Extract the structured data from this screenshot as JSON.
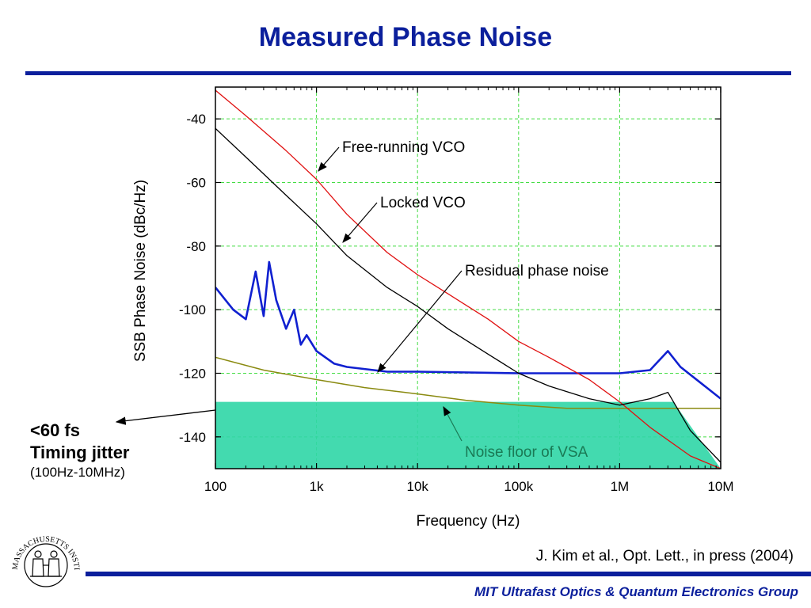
{
  "slide": {
    "title": "Measured Phase Noise",
    "jitter_line1": "<60 fs",
    "jitter_line2": "Timing jitter",
    "jitter_range": "(100Hz-10MHz)",
    "citation": "J. Kim et al., Opt. Lett., in press (2004)",
    "footer": "MIT Ultrafast Optics & Quantum Electronics Group",
    "logo_text": "MASSACHUSETTS INSTITUTE OF TECHNOLOGY"
  },
  "colors": {
    "title": "#0b1f9c",
    "free_running": "#e01010",
    "locked": "#000000",
    "residual": "#1020d0",
    "vsa_floor": "#8a8a10",
    "jitter_area": "#2fd6a6",
    "grid": "#44dd44"
  },
  "chart_data": {
    "type": "line",
    "xscale": "log",
    "xlabel": "Frequency (Hz)",
    "ylabel": "SSB Phase Noise (dBc/Hz)",
    "xlim": [
      100,
      10000000
    ],
    "ylim": [
      -150,
      -30
    ],
    "x_ticks": [
      100,
      1000,
      10000,
      100000,
      1000000,
      10000000
    ],
    "x_tick_labels": [
      "100",
      "1k",
      "10k",
      "100k",
      "1M",
      "10M"
    ],
    "y_ticks": [
      -140,
      -120,
      -100,
      -80,
      -60,
      -40
    ],
    "y_tick_labels": [
      "-140",
      "-120",
      "-100",
      "-80",
      "-60",
      "-40"
    ],
    "grid": true,
    "series": [
      {
        "name": "Free-running VCO",
        "x": [
          100,
          200,
          500,
          1000,
          2000,
          5000,
          10000,
          20000,
          50000,
          100000,
          200000,
          500000,
          1000000,
          2000000,
          5000000,
          10000000
        ],
        "y": [
          -31,
          -39,
          -50,
          -59,
          -70,
          -82,
          -89,
          -95,
          -103,
          -110,
          -115,
          -122,
          -129,
          -137,
          -146,
          -150
        ]
      },
      {
        "name": "Locked VCO",
        "x": [
          100,
          200,
          500,
          1000,
          2000,
          5000,
          10000,
          20000,
          50000,
          100000,
          200000,
          500000,
          1000000,
          2000000,
          3000000,
          5000000,
          10000000
        ],
        "y": [
          -43,
          -52,
          -64,
          -73,
          -83,
          -93,
          -99,
          -106,
          -114,
          -120,
          -124,
          -128,
          -130,
          -128,
          -126,
          -138,
          -148
        ]
      },
      {
        "name": "Residual phase noise",
        "x": [
          100,
          150,
          200,
          250,
          300,
          340,
          400,
          500,
          600,
          700,
          800,
          1000,
          1500,
          2000,
          5000,
          10000,
          100000,
          1000000,
          2000000,
          3000000,
          4000000,
          10000000
        ],
        "y": [
          -93,
          -100,
          -103,
          -88,
          -102,
          -85,
          -97,
          -106,
          -100,
          -111,
          -108,
          -113,
          -117,
          -118,
          -119.5,
          -119.5,
          -120,
          -120,
          -119,
          -113,
          -118,
          -128
        ]
      },
      {
        "name": "Noise floor of VSA",
        "x": [
          100,
          300,
          1000,
          3000,
          10000,
          30000,
          100000,
          300000,
          1000000,
          10000000
        ],
        "y": [
          -115,
          -119,
          -122,
          -124.5,
          -126.5,
          -128.5,
          -130,
          -131,
          -131,
          -131
        ]
      }
    ],
    "annotations": [
      {
        "text": "Free-running VCO",
        "x": 1000,
        "y": -59
      },
      {
        "text": "Locked VCO",
        "x": 1150,
        "y": -79
      },
      {
        "text": "Residual phase noise",
        "x": 3500,
        "y": -119
      },
      {
        "text": "Noise floor of VSA",
        "x": 12000,
        "y": -129
      }
    ],
    "shaded_region": {
      "x": [
        100,
        3400000,
        10000000
      ],
      "y_top": -129,
      "y_bottom": -150
    }
  }
}
